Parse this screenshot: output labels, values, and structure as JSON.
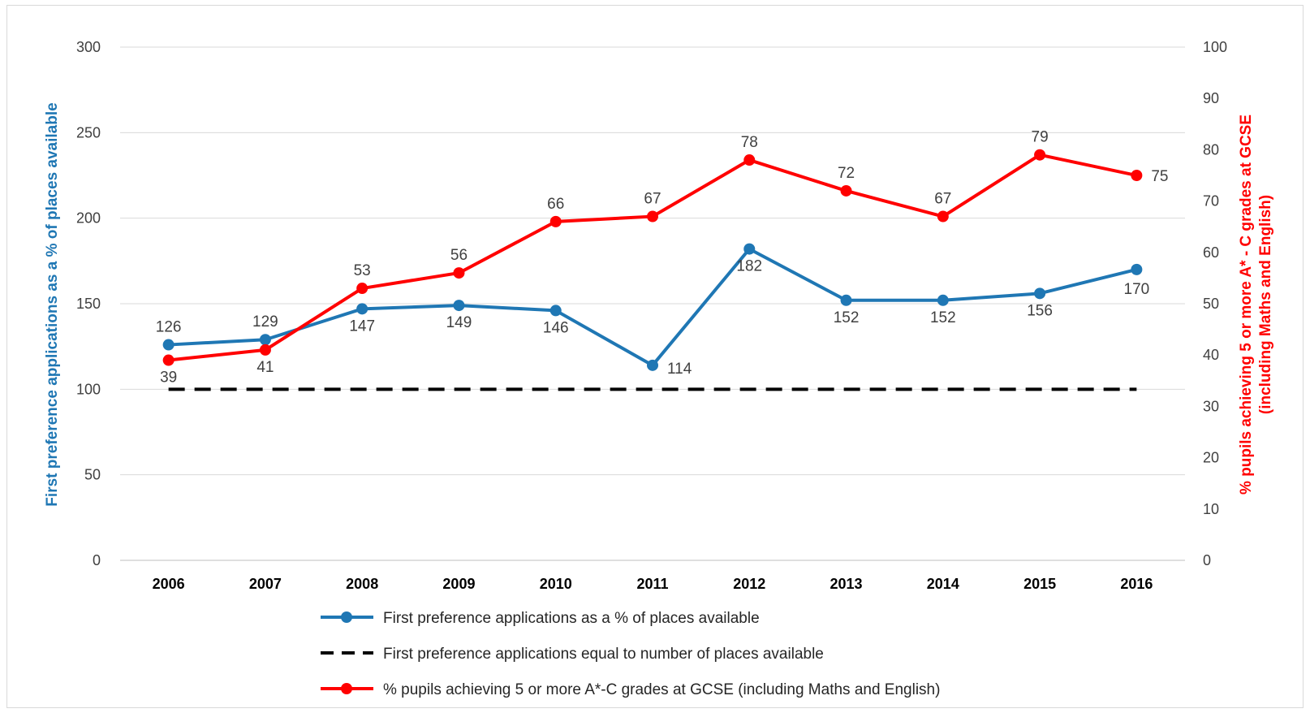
{
  "chart_data": {
    "type": "line",
    "x": [
      "2006",
      "2007",
      "2008",
      "2009",
      "2010",
      "2011",
      "2012",
      "2013",
      "2014",
      "2015",
      "2016"
    ],
    "y_left": {
      "label": "First preference applications as a % of places available",
      "ylim": [
        0,
        300
      ],
      "ticks": [
        "0",
        "50",
        "100",
        "150",
        "200",
        "250",
        "300"
      ],
      "color": "#1f77b4"
    },
    "y_right": {
      "label_line1": "% pupils achieving 5 or more A* - C grades at GCSE",
      "label_line2": "(including Maths and English)",
      "ylim": [
        0,
        100
      ],
      "ticks": [
        "0",
        "10",
        "20",
        "30",
        "40",
        "50",
        "60",
        "70",
        "80",
        "90",
        "100"
      ],
      "color": "#ff0000"
    },
    "series": [
      {
        "name": "First preference applications as a % of places available",
        "axis": "left",
        "color": "#1f77b4",
        "style": "solid-markers",
        "values": [
          126,
          129,
          147,
          149,
          146,
          114,
          182,
          152,
          152,
          156,
          170
        ]
      },
      {
        "name": "First preference applications equal to number of places available",
        "axis": "left",
        "color": "#000000",
        "style": "dashed",
        "values": [
          100,
          100,
          100,
          100,
          100,
          100,
          100,
          100,
          100,
          100,
          100
        ]
      },
      {
        "name": "% pupils achieving 5 or more A*-C grades at GCSE (including Maths and English)",
        "axis": "right",
        "color": "#ff0000",
        "style": "solid-markers",
        "values": [
          39,
          41,
          53,
          56,
          66,
          67,
          78,
          72,
          67,
          79,
          75
        ]
      }
    ],
    "grid": true,
    "legend_position": "bottom"
  }
}
